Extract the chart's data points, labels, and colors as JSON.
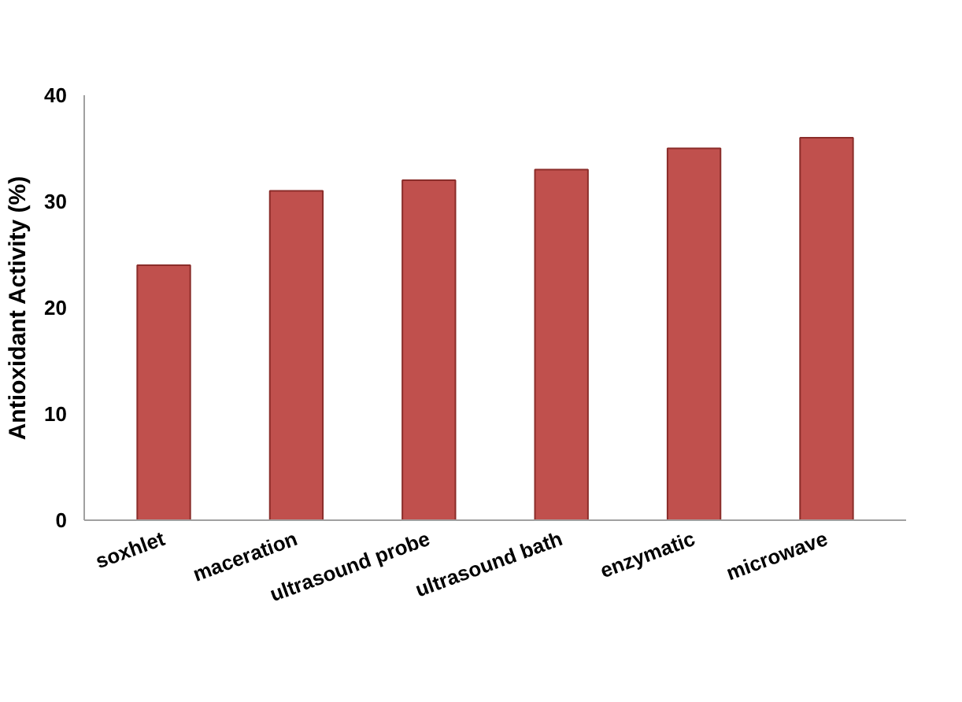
{
  "chart_data": {
    "type": "bar",
    "ylabel": "Antioxidant Activity (%)",
    "categories": [
      "soxhlet",
      "maceration",
      "ultrasound probe",
      "ultrasound bath",
      "enzymatic",
      "microwave"
    ],
    "values": [
      24,
      31,
      32,
      33,
      35,
      36
    ],
    "color": "#c0504d",
    "ylim": [
      0,
      40
    ],
    "yticks": [
      0,
      10,
      20,
      30,
      40
    ],
    "grid": false
  }
}
